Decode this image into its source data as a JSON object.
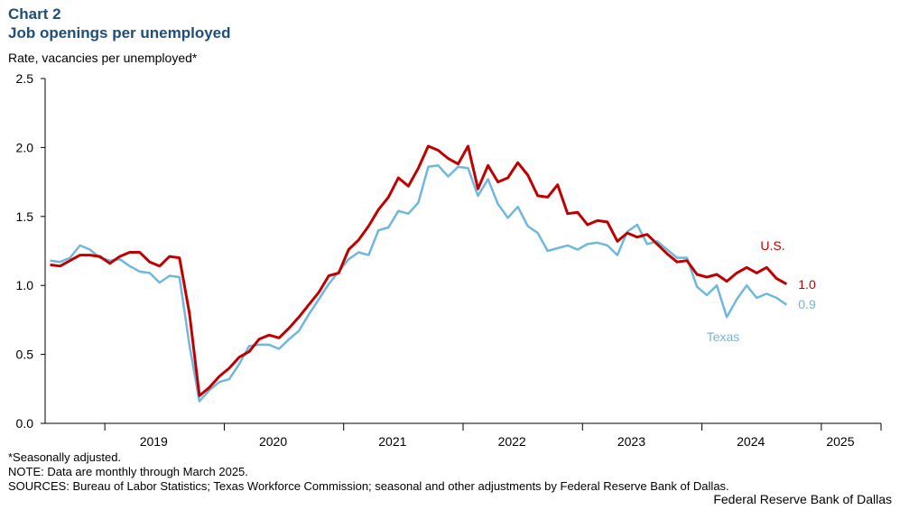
{
  "header": {
    "chart_label": "Chart 2",
    "title": "Job openings per unemployed",
    "y_axis_title": "Rate, vacancies per unemployed*"
  },
  "footer": {
    "note1": "*Seasonally adjusted.",
    "note2": "NOTE: Data are monthly through March 2025.",
    "sources": "SOURCES: Bureau of Labor Statistics; Texas Workforce Commission; seasonal and other adjustments by Federal Reserve Bank of Dallas.",
    "brand": "Federal Reserve Bank of Dallas"
  },
  "colors": {
    "us": "#c00000",
    "texas": "#6fb7dc",
    "axis": "#000000",
    "label": "#1f4e79"
  },
  "chart_data": {
    "type": "line",
    "title": "Job openings per unemployed",
    "ylabel": "Rate, vacancies per unemployed*",
    "xlabel": "",
    "ylim": [
      0,
      2.5
    ],
    "y_ticks": [
      "0.0",
      "0.5",
      "1.0",
      "1.5",
      "2.0",
      "2.5"
    ],
    "x_tick_labels": [
      "2019",
      "2020",
      "2021",
      "2022",
      "2023",
      "2024",
      "2025"
    ],
    "x_start": "2018-07",
    "x_end": "2025-03",
    "grid": false,
    "series": [
      {
        "name": "U.S.",
        "end_label": "1.0",
        "values": [
          1.15,
          1.14,
          1.18,
          1.22,
          1.22,
          1.21,
          1.16,
          1.21,
          1.24,
          1.24,
          1.17,
          1.14,
          1.21,
          1.2,
          0.8,
          0.2,
          0.26,
          0.34,
          0.4,
          0.48,
          0.52,
          0.61,
          0.64,
          0.62,
          0.69,
          0.77,
          0.86,
          0.95,
          1.07,
          1.09,
          1.26,
          1.33,
          1.43,
          1.55,
          1.64,
          1.78,
          1.72,
          1.85,
          2.01,
          1.98,
          1.92,
          1.88,
          2.01,
          1.7,
          1.87,
          1.75,
          1.78,
          1.89,
          1.8,
          1.65,
          1.64,
          1.73,
          1.52,
          1.53,
          1.44,
          1.47,
          1.46,
          1.32,
          1.38,
          1.35,
          1.37,
          1.3,
          1.23,
          1.17,
          1.18,
          1.08,
          1.06,
          1.08,
          1.03,
          1.09,
          1.13,
          1.09,
          1.13,
          1.05,
          1.01
        ]
      },
      {
        "name": "Texas",
        "end_label": "0.9",
        "values": [
          1.18,
          1.17,
          1.2,
          1.29,
          1.26,
          1.2,
          1.18,
          1.19,
          1.14,
          1.1,
          1.09,
          1.02,
          1.07,
          1.06,
          0.57,
          0.16,
          0.24,
          0.3,
          0.32,
          0.43,
          0.56,
          0.57,
          0.57,
          0.54,
          0.61,
          0.67,
          0.79,
          0.9,
          1.01,
          1.1,
          1.19,
          1.24,
          1.22,
          1.4,
          1.42,
          1.54,
          1.52,
          1.6,
          1.86,
          1.87,
          1.79,
          1.86,
          1.85,
          1.65,
          1.77,
          1.59,
          1.49,
          1.57,
          1.43,
          1.38,
          1.25,
          1.27,
          1.29,
          1.26,
          1.3,
          1.31,
          1.29,
          1.22,
          1.39,
          1.44,
          1.3,
          1.32,
          1.26,
          1.2,
          1.2,
          0.99,
          0.93,
          1.0,
          0.77,
          0.9,
          1.0,
          0.91,
          0.94,
          0.91,
          0.86
        ]
      }
    ]
  }
}
